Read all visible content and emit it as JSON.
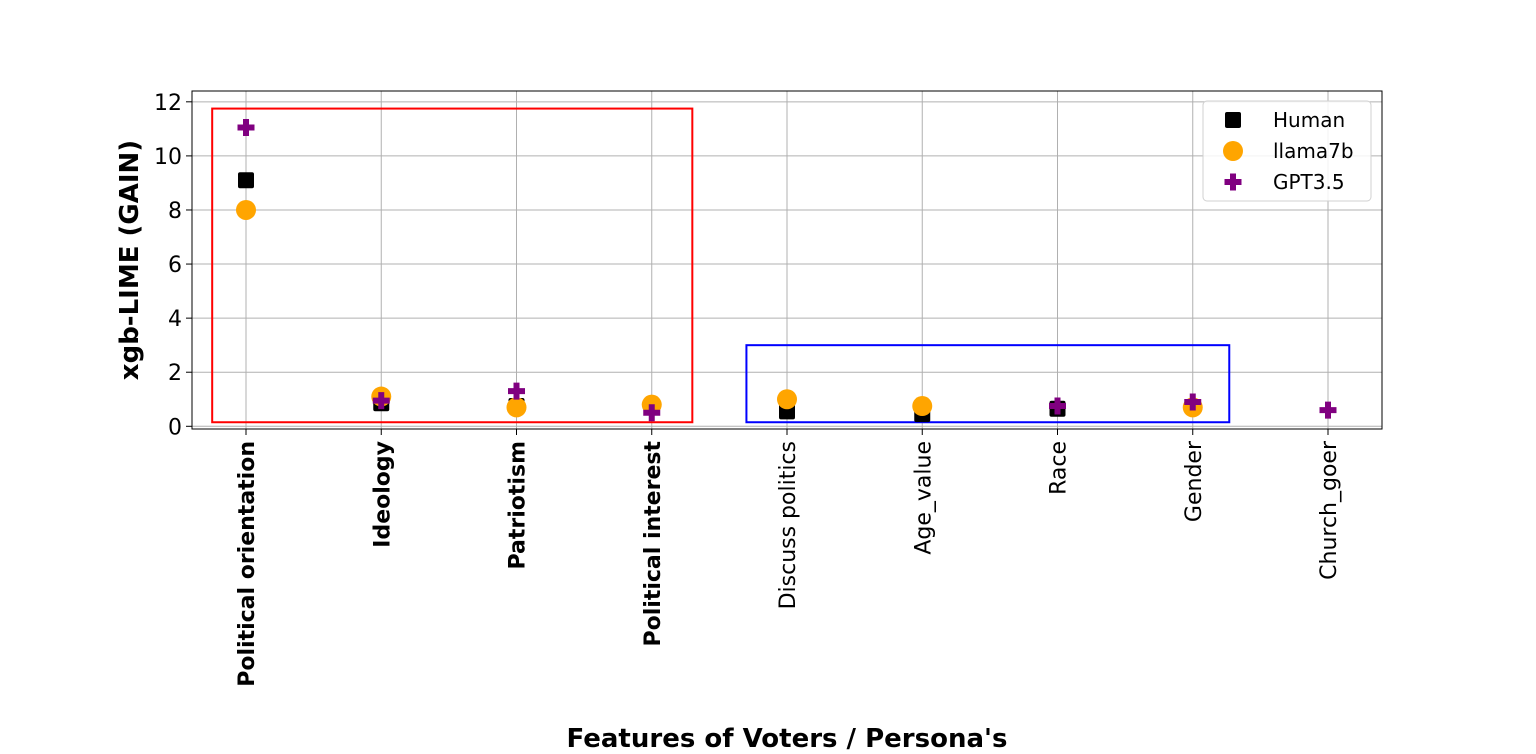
{
  "chart_data": {
    "type": "scatter",
    "title": "",
    "xlabel": "Features of Voters / Persona's",
    "ylabel": "xgb-LIME (GAIN)",
    "ylim": [
      -0.1,
      12.4
    ],
    "yticks": [
      0,
      2,
      4,
      6,
      8,
      10,
      12
    ],
    "grid": true,
    "legend_position": "top-right",
    "categories": [
      {
        "label": "Political orientation",
        "bold": true
      },
      {
        "label": "Ideology",
        "bold": true
      },
      {
        "label": "Patriotism",
        "bold": true
      },
      {
        "label": "Political interest",
        "bold": true
      },
      {
        "label": "Discuss politics",
        "bold": false
      },
      {
        "label": "Age_value",
        "bold": false
      },
      {
        "label": "Race",
        "bold": false
      },
      {
        "label": "Gender",
        "bold": false
      },
      {
        "label": "Church_goer",
        "bold": false
      }
    ],
    "series": [
      {
        "name": "Human",
        "marker": "square",
        "color": "#000000",
        "values": [
          9.1,
          0.85,
          0.75,
          null,
          0.55,
          0.45,
          0.65,
          null,
          null
        ]
      },
      {
        "name": "llama7b",
        "marker": "circle",
        "color": "#FFA500",
        "values": [
          8.0,
          1.1,
          0.7,
          0.8,
          1.0,
          0.75,
          null,
          0.7,
          null
        ]
      },
      {
        "name": "GPT3.5",
        "marker": "plus",
        "color": "#800080",
        "values": [
          11.05,
          0.95,
          1.3,
          0.5,
          null,
          null,
          0.75,
          0.9,
          0.6
        ]
      }
    ],
    "annotations": [
      {
        "shape": "rectangle",
        "color": "#FF0000",
        "x_from": -0.25,
        "x_to": 3.3,
        "y_from": 0.15,
        "y_to": 11.75
      },
      {
        "shape": "rectangle",
        "color": "#0000FF",
        "x_from": 3.7,
        "x_to": 7.27,
        "y_from": 0.15,
        "y_to": 3.0
      }
    ]
  }
}
